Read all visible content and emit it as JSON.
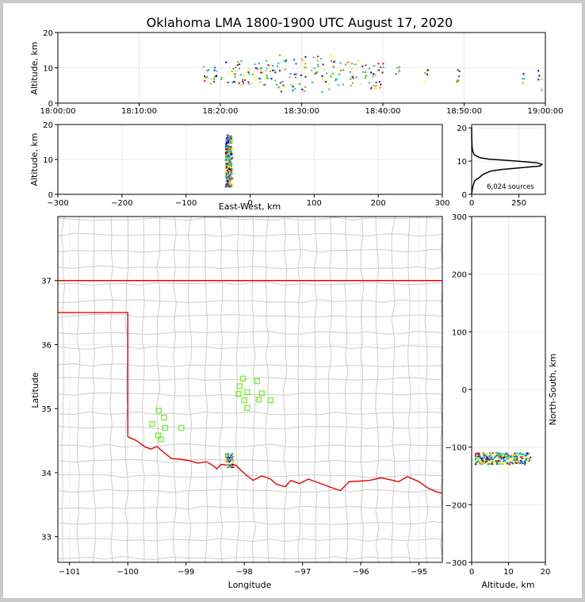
{
  "chart_data": {
    "title": "Oklahoma LMA 1800-1900 UTC August 17, 2020",
    "panels": [
      {
        "id": "time-altitude",
        "type": "scatter",
        "xlabel": "",
        "ylabel": "Altitude, km",
        "xlim": [
          "18:00:00",
          "19:00:00"
        ],
        "ylim": [
          0,
          20
        ],
        "x_ticks": [
          "18:00:00",
          "18:10:00",
          "18:20:00",
          "18:30:00",
          "18:40:00",
          "18:50:00",
          "19:00:00"
        ],
        "y_ticks": [
          0,
          10,
          20
        ],
        "clusters": [
          {
            "t_start": "18:17:30",
            "t_end": "18:19:30",
            "alt_min": 5,
            "alt_max": 11
          },
          {
            "t_start": "18:20:00",
            "t_end": "18:27:00",
            "alt_min": 5,
            "alt_max": 12
          },
          {
            "t_start": "18:27:00",
            "t_end": "18:34:00",
            "alt_min": 3,
            "alt_max": 14
          },
          {
            "t_start": "18:34:00",
            "t_end": "18:40:00",
            "alt_min": 4,
            "alt_max": 12
          },
          {
            "t_start": "18:41:30",
            "t_end": "18:42:00",
            "alt_min": 8,
            "alt_max": 11
          },
          {
            "t_start": "18:45:00",
            "t_end": "18:45:30",
            "alt_min": 6,
            "alt_max": 10
          },
          {
            "t_start": "18:49:00",
            "t_end": "18:49:30",
            "alt_min": 6,
            "alt_max": 10
          },
          {
            "t_start": "18:57:00",
            "t_end": "18:57:30",
            "alt_min": 4,
            "alt_max": 10
          },
          {
            "t_start": "18:59:00",
            "t_end": "18:59:30",
            "alt_min": 3,
            "alt_max": 10
          }
        ]
      },
      {
        "id": "ew-altitude",
        "type": "scatter",
        "xlabel": "East-West, km",
        "ylabel": "Altitude, km",
        "xlim": [
          -300,
          300
        ],
        "ylim": [
          0,
          20
        ],
        "x_ticks": [
          -300,
          -200,
          -100,
          0,
          100,
          200,
          300
        ],
        "y_ticks": [
          0,
          10,
          20
        ],
        "cluster": {
          "x_min": -38,
          "x_max": -28,
          "alt_min": 2,
          "alt_max": 17
        }
      },
      {
        "id": "altitude-histogram",
        "type": "line",
        "xlim": [
          0,
          390
        ],
        "ylim": [
          0,
          21
        ],
        "x_ticks": [
          0,
          250
        ],
        "y_ticks": [
          0,
          10,
          20
        ],
        "annotation": "6,024 sources",
        "x": [
          0,
          2,
          5,
          10,
          15,
          25,
          40,
          60,
          100,
          160,
          260,
          360,
          372,
          345,
          240,
          160,
          90,
          45,
          25,
          12,
          6,
          3,
          1,
          0
        ],
        "y": [
          0,
          1,
          2,
          3,
          4,
          4.5,
          5,
          6,
          7,
          7.5,
          8,
          8.5,
          9,
          9.5,
          10,
          10.3,
          10.6,
          11,
          11.5,
          12,
          13,
          14,
          16,
          20
        ]
      },
      {
        "id": "plan-view",
        "type": "map",
        "xlabel": "Longitude",
        "ylabel": "Latitude",
        "xlim": [
          -101.2,
          -94.6
        ],
        "ylim": [
          32.6,
          38.0
        ],
        "x_ticks": [
          -101,
          -100,
          -99,
          -98,
          -97,
          -96,
          -95
        ],
        "y_ticks": [
          33,
          34,
          35,
          36,
          37
        ],
        "stations": [
          [
            -98.02,
            35.47
          ],
          [
            -97.78,
            35.43
          ],
          [
            -98.08,
            35.35
          ],
          [
            -97.95,
            35.26
          ],
          [
            -98.1,
            35.23
          ],
          [
            -97.7,
            35.24
          ],
          [
            -98.0,
            35.13
          ],
          [
            -97.75,
            35.14
          ],
          [
            -97.55,
            35.13
          ],
          [
            -97.95,
            35.01
          ],
          [
            -99.47,
            34.97
          ],
          [
            -99.38,
            34.86
          ],
          [
            -99.58,
            34.76
          ],
          [
            -99.36,
            34.7
          ],
          [
            -99.08,
            34.7
          ],
          [
            -99.48,
            34.58
          ],
          [
            -99.43,
            34.52
          ]
        ],
        "source_cluster": {
          "lon_min": -98.33,
          "lon_max": -98.18,
          "lat_min": 34.08,
          "lat_max": 34.3
        },
        "colors": {
          "state_border": "#ee0000",
          "county_lines": "#cccccc",
          "stations": "#77ee33"
        }
      },
      {
        "id": "altitude-ns",
        "type": "scatter",
        "xlabel": "Altitude, km",
        "ylabel": "North-South, km",
        "xlim": [
          0,
          20
        ],
        "ylim": [
          -300,
          300
        ],
        "x_ticks": [
          0,
          10,
          20
        ],
        "y_ticks": [
          -300,
          -200,
          -100,
          0,
          100,
          200,
          300
        ],
        "cluster": {
          "alt_min": 1,
          "alt_max": 16,
          "ns_min": -130,
          "ns_max": -110
        }
      }
    ]
  }
}
